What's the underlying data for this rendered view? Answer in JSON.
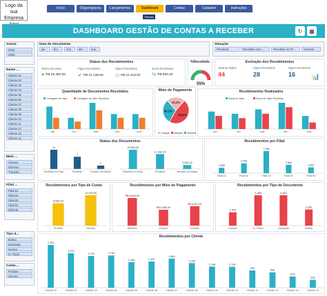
{
  "logo": {
    "line1": "Logo da sua",
    "line2": "Empresa Aqui"
  },
  "nav": {
    "tabs": [
      "Início",
      "Organograma",
      "Lançamentos",
      "Dashboard",
      "Contas",
      "Cadastro",
      "Instruções"
    ],
    "active": "Dashboard",
    "subtab": "Tabelas"
  },
  "title": "DASHBOARD GESTÃO DE CONTAS A RECEBER",
  "colors": {
    "teal": "#2bb0c6",
    "dark": "#1f5d8c",
    "orange": "#f07f2e",
    "green": "#3cb371",
    "red": "#e8434a"
  },
  "slicers": {
    "ano": {
      "title": "Anos2",
      "items": [
        "2019",
        "2020"
      ]
    },
    "nome": {
      "title": "Nome ...",
      "items": [
        "Cliente 01",
        "Cliente 02",
        "Cliente 03",
        "Cliente 04",
        "Cliente 05",
        "Cliente 06",
        "Cliente 07",
        "Cliente 08",
        "Cliente 09",
        "Cliente 10",
        "Cliente 11",
        "Cliente 12",
        "Cliente 13",
        "Cliente 14"
      ]
    },
    "meio": {
      "title": "Meio ...",
      "items": [
        "Cheque",
        "Dinheiro",
        "Transfer..."
      ]
    },
    "filial": {
      "title": "Filial ...",
      "items": [
        "Filial 01",
        "Filial 02",
        "Filial 03",
        "Filial 04",
        "Filial 05"
      ]
    },
    "tipo": {
      "title": "Tipo d...",
      "items": [
        "Boleto",
        "Duplicata",
        "Invoice",
        "N. Fiscal"
      ]
    },
    "conta": {
      "title": "Conta ...",
      "items": [
        "Produto",
        "Serviço"
      ]
    }
  },
  "data_vencimento": {
    "title": "Data de Vencimento",
    "months": [
      "jan",
      "fev",
      "mar",
      "abr",
      "mai"
    ]
  },
  "situacao": {
    "title": "Situação",
    "items": [
      "Pendente",
      "Recebido com ...",
      "Recebido no Pr...",
      "Vencido"
    ]
  },
  "status": {
    "title": "Status dos Recebimentos",
    "total_label": "Total a Receber",
    "total_value": "R$ 29.494,00",
    "recebidos_label": "Pgtos Recebidos",
    "recebidos_value": "R$ 21.136,00",
    "pendentes_label": "Pgtos Pendentes",
    "pendentes_value": "R$ 11.318,00",
    "juros_label": "Juros Recebidos",
    "juros_value": "R$ 825,00"
  },
  "gauge": {
    "title": "%Recebido",
    "value": "55%",
    "fraction": 0.55
  },
  "evolucao": {
    "title": "Evolução dos Recebimentos",
    "items": [
      {
        "label": "Total de Pgtos",
        "value": "44"
      },
      {
        "label": "Pgtos Recebidos",
        "value": "28"
      },
      {
        "label": "Pgtos Pendentes",
        "value": "16"
      }
    ]
  },
  "charts": {
    "quantidade": {
      "type": "bar",
      "title": "Quantidade de Documentos Recebidos",
      "legend": [
        "Contagem de Valor",
        "Contagem de Valor Recebido"
      ],
      "categories": [
        "jan",
        "fev",
        "mar",
        "abr",
        "mai"
      ],
      "series": [
        {
          "name": "Contagem de Valor",
          "values": [
            6,
            3,
            7,
            4,
            4
          ]
        },
        {
          "name": "Contagem de Valor Recebido",
          "values": [
            3,
            2,
            5,
            3,
            3
          ]
        }
      ]
    },
    "meio_pagamento": {
      "type": "pie",
      "title": "Meio de Pagamento",
      "labels": [
        "Cheque",
        "Dinheiro",
        "Transfer"
      ],
      "values": [
        23.1,
        46.8,
        30.1
      ],
      "value_labels": [
        "23,1%",
        "46,8%",
        "30,1%"
      ]
    },
    "realizados": {
      "type": "bar",
      "title": "Recebimentos Realizados",
      "legend": [
        "Soma de Valor",
        "Soma de Valor Recebido"
      ],
      "categories": [
        "jan",
        "fev",
        "mar",
        "abr",
        "mai"
      ],
      "series": [
        {
          "name": "Soma de Valor",
          "values": [
            8,
            7,
            9,
            12,
            6
          ]
        },
        {
          "name": "Soma de Valor Recebido",
          "values": [
            6,
            5,
            7,
            10,
            3
          ]
        }
      ]
    },
    "status_docs": {
      "type": "bar",
      "title": "Status dos Documentos",
      "left": {
        "categories": [
          "Recebido no Prazo",
          "Pendente",
          "Vencido com Atraso"
        ],
        "values": [
          11,
          7,
          2
        ],
        "labels": [
          "11",
          "7",
          "2"
        ]
      },
      "right": {
        "categories": [
          "Recebido no Prazo",
          "Pendente",
          "Vencido com Atraso"
        ],
        "values": [
          15680,
          12162,
          3262
        ],
        "labels": [
          "15.680,00",
          "12.162,00",
          "3.262,00"
        ]
      }
    },
    "filial": {
      "type": "bar",
      "title": "Recebimentos por Filial",
      "categories": [
        "Filial 01",
        "Filial 02",
        "Filial 03",
        "Filial 04",
        "Filial 05"
      ],
      "values": [
        1800,
        3300,
        7350,
        2800,
        1950
      ],
      "labels": [
        "1.800",
        "3.300",
        "7.350",
        "2.800",
        "1.950"
      ]
    },
    "tipo_conta": {
      "type": "bar",
      "title": "Recebimentos por Tipo de Conta",
      "categories": [
        "Produto",
        "Serviço"
      ],
      "values": [
        8884,
        12079
      ],
      "labels": [
        "8.884,00",
        "12.079,00"
      ]
    },
    "meio_pag_bar": {
      "type": "bar",
      "title": "Recebimentos por Meio de Pagamento",
      "categories": [
        "Dinheiro",
        "Cheque",
        "Transfer."
      ],
      "values": [
        8833,
        5080,
        6237
      ],
      "labels": [
        "R$ 8.833,00",
        "R$ 5.080,00",
        "R$ 6.237,00"
      ]
    },
    "tipo_documento": {
      "type": "bar",
      "title": "Recebimentos por Tipo de Documento",
      "categories": [
        "Invoice",
        "N. Fiscal",
        "Duplicata",
        "Boleto"
      ],
      "values": [
        1930,
        4385,
        4390,
        2340
      ],
      "labels": [
        "1.930",
        "4.385",
        "4.390",
        "2.340"
      ]
    },
    "cliente": {
      "type": "bar",
      "title": "Recebimentos por Cliente",
      "categories": [
        "Cliente 01",
        "Cliente 02",
        "Cliente 03",
        "Cliente 04",
        "Cliente 05",
        "Cliente 06",
        "Cliente 07",
        "Cliente 08",
        "Cliente 09",
        "Cliente 10",
        "Cliente 11",
        "Cliente 12",
        "Cliente 13",
        "Cliente 14"
      ],
      "values": [
        2320,
        1870,
        1720,
        1750,
        1390,
        1422,
        1580,
        1335,
        1148,
        1134,
        940,
        836,
        610,
        430
      ],
      "labels": [
        "2.320",
        "1.870",
        "1.720",
        "1.750",
        "1.390",
        "1.422",
        "1.580",
        "1.335",
        "1.148",
        "1.134",
        "940",
        "836",
        "610",
        "430"
      ]
    }
  }
}
